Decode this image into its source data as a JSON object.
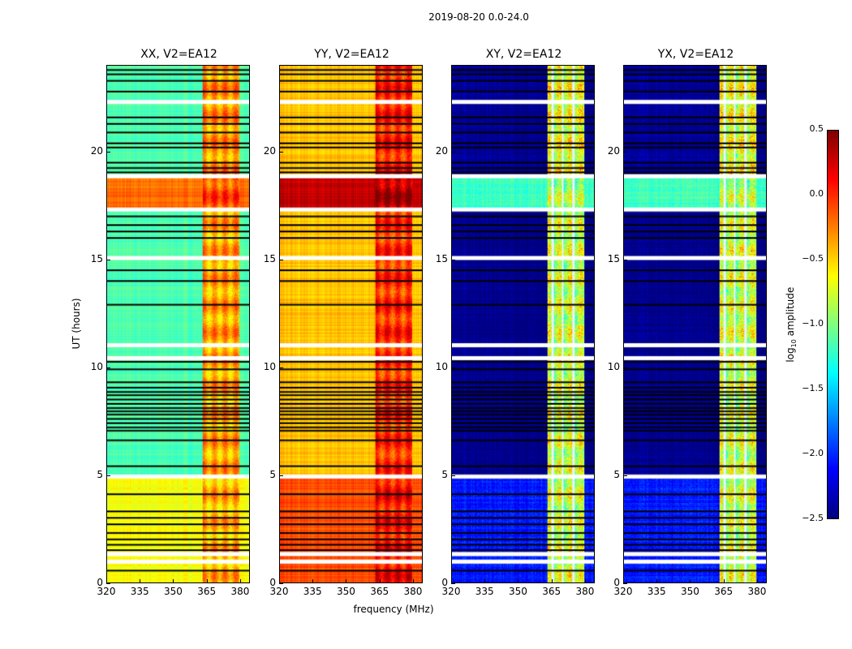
{
  "chart_data": {
    "type": "heatmap",
    "title": "2019-08-20 0.0-24.0",
    "xlabel": "frequency (MHz)",
    "ylabel": "UT (hours)",
    "xlim": [
      320,
      384.4
    ],
    "ylim": [
      0,
      24
    ],
    "xticks": [
      "320",
      "335",
      "350",
      "365",
      "380"
    ],
    "xtick_values": [
      320,
      335,
      350,
      365,
      380
    ],
    "yticks": [
      "0",
      "5",
      "10",
      "15",
      "20"
    ],
    "ytick_values": [
      0,
      5,
      10,
      15,
      20
    ],
    "colorbar": {
      "label_main": "log",
      "label_sub": "10",
      "label_rest": " amplitude",
      "range": [
        -2.5,
        0.5
      ],
      "ticks": [
        "0.5",
        "0.0",
        "−0.5",
        "−1.0",
        "−1.5",
        "−2.0",
        "−2.5"
      ],
      "tick_values": [
        0.5,
        0.0,
        -0.5,
        -1.0,
        -1.5,
        -2.0,
        -2.5
      ],
      "colormap": "jet"
    },
    "rfi_band_mhz": [
      363,
      380
    ],
    "flagged_hours": [
      0.95,
      1.3,
      4.9,
      10.4,
      11.0,
      15.05,
      17.3,
      18.85,
      22.3
    ],
    "dropout_hours": [
      0.55,
      1.5,
      1.75,
      2.0,
      2.3,
      2.7,
      3.0,
      3.3,
      4.1,
      5.4,
      6.6,
      7.05,
      7.2,
      7.4,
      7.6,
      7.8,
      7.95,
      8.1,
      8.3,
      8.5,
      8.7,
      8.85,
      9.05,
      9.3,
      9.9,
      10.25,
      12.9,
      14.0,
      14.5,
      16.0,
      16.3,
      16.6,
      17.0,
      19.05,
      19.25,
      19.5,
      20.2,
      20.4,
      20.9,
      21.3,
      21.6,
      22.8,
      23.3,
      23.6,
      23.8
    ],
    "panels": [
      {
        "title": "XX, V2=EA12",
        "segments": [
          {
            "hours": [
              0,
              4.9
            ],
            "base": -0.65,
            "rfi": -0.4
          },
          {
            "hours": [
              4.9,
              17.3
            ],
            "base": -1.15,
            "rfi": -0.35
          },
          {
            "hours": [
              17.3,
              18.85
            ],
            "base": -0.2,
            "rfi": -0.1
          },
          {
            "hours": [
              18.85,
              24
            ],
            "base": -1.15,
            "rfi": -0.3
          }
        ]
      },
      {
        "title": "YY, V2=EA12",
        "segments": [
          {
            "hours": [
              0,
              4.9
            ],
            "base": -0.1,
            "rfi": 0.1
          },
          {
            "hours": [
              4.9,
              17.3
            ],
            "base": -0.45,
            "rfi": 0.0
          },
          {
            "hours": [
              17.3,
              18.85
            ],
            "base": 0.3,
            "rfi": 0.35
          },
          {
            "hours": [
              18.85,
              24
            ],
            "base": -0.45,
            "rfi": 0.05
          }
        ]
      },
      {
        "title": "XY, V2=EA12",
        "segments": [
          {
            "hours": [
              0,
              4.9
            ],
            "base": -2.05,
            "rfi": -0.8
          },
          {
            "hours": [
              4.9,
              17.3
            ],
            "base": -2.45,
            "rfi": -0.8
          },
          {
            "hours": [
              17.3,
              18.85
            ],
            "base": -1.2,
            "rfi": -0.9
          },
          {
            "hours": [
              18.85,
              24
            ],
            "base": -2.4,
            "rfi": -0.7
          }
        ]
      },
      {
        "title": "YX, V2=EA12",
        "segments": [
          {
            "hours": [
              0,
              4.9
            ],
            "base": -2.05,
            "rfi": -0.8
          },
          {
            "hours": [
              4.9,
              17.3
            ],
            "base": -2.45,
            "rfi": -0.8
          },
          {
            "hours": [
              17.3,
              18.85
            ],
            "base": -1.2,
            "rfi": -0.9
          },
          {
            "hours": [
              18.85,
              24
            ],
            "base": -2.4,
            "rfi": -0.7
          }
        ]
      }
    ]
  }
}
